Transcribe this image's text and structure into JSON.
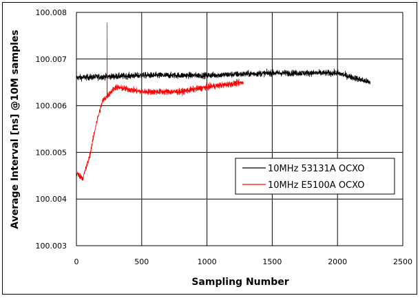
{
  "chart_data": {
    "type": "line",
    "title": "",
    "xlabel": "Sampling Number",
    "ylabel": "Average Interval [ns] @10M samples",
    "xlim": [
      0,
      2500
    ],
    "ylim": [
      100.003,
      100.008
    ],
    "xticks": [
      "0",
      "500",
      "1000",
      "1500",
      "2000",
      "2500"
    ],
    "yticks": [
      "100.003",
      "100.004",
      "100.005",
      "100.006",
      "100.007",
      "100.008"
    ],
    "grid": true,
    "legend_position": "lower-right",
    "series": [
      {
        "name": "10MHz 53131A OCXO",
        "color": "#000000",
        "x_start": 0,
        "x_end": 2250,
        "mean": 100.00665,
        "noise": 0.00012,
        "approx_points": [
          [
            0,
            100.0066
          ],
          [
            500,
            100.00665
          ],
          [
            1000,
            100.00665
          ],
          [
            1500,
            100.0067
          ],
          [
            2000,
            100.0067
          ],
          [
            2250,
            100.0065
          ]
        ]
      },
      {
        "name": "10MHz E5100A OCXO",
        "color": "#ff0000",
        "x_start": 0,
        "x_end": 1280,
        "noise": 0.00012,
        "spike": [
          235,
          100.00778
        ],
        "approx_points": [
          [
            0,
            100.00455
          ],
          [
            50,
            100.00445
          ],
          [
            100,
            100.0049
          ],
          [
            150,
            100.0056
          ],
          [
            200,
            100.0061
          ],
          [
            300,
            100.0064
          ],
          [
            500,
            100.0063
          ],
          [
            800,
            100.0063
          ],
          [
            1000,
            100.0064
          ],
          [
            1280,
            100.0065
          ]
        ]
      }
    ]
  }
}
